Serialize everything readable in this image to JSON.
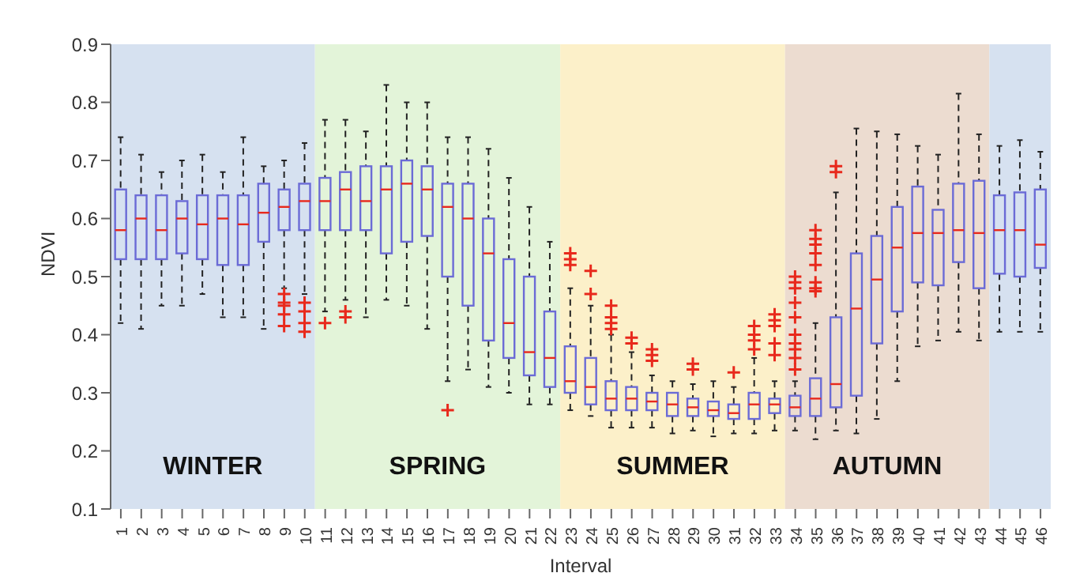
{
  "chart_data": {
    "type": "box",
    "xlabel": "Interval",
    "ylabel": "NDVI",
    "categories": [
      "1",
      "2",
      "3",
      "4",
      "5",
      "6",
      "7",
      "8",
      "9",
      "10",
      "11",
      "12",
      "13",
      "14",
      "15",
      "16",
      "17",
      "18",
      "19",
      "20",
      "21",
      "22",
      "23",
      "24",
      "25",
      "26",
      "27",
      "28",
      "29",
      "30",
      "31",
      "32",
      "33",
      "34",
      "35",
      "36",
      "37",
      "38",
      "39",
      "40",
      "41",
      "42",
      "43",
      "44",
      "45",
      "46"
    ],
    "ylim": [
      0.1,
      0.9
    ],
    "yticks": [
      0.1,
      0.2,
      0.3,
      0.4,
      0.5,
      0.6,
      0.7,
      0.8,
      0.9
    ],
    "grid": false,
    "legend": false,
    "series": [
      {
        "color": "#6b6bd6",
        "boxes": [
          {
            "low": 0.42,
            "q1": 0.53,
            "median": 0.58,
            "q3": 0.65,
            "high": 0.74
          },
          {
            "low": 0.41,
            "q1": 0.53,
            "median": 0.6,
            "q3": 0.64,
            "high": 0.71
          },
          {
            "low": 0.45,
            "q1": 0.53,
            "median": 0.58,
            "q3": 0.64,
            "high": 0.68
          },
          {
            "low": 0.45,
            "q1": 0.54,
            "median": 0.6,
            "q3": 0.63,
            "high": 0.7
          },
          {
            "low": 0.47,
            "q1": 0.53,
            "median": 0.59,
            "q3": 0.64,
            "high": 0.71
          },
          {
            "low": 0.43,
            "q1": 0.52,
            "median": 0.6,
            "q3": 0.64,
            "high": 0.68
          },
          {
            "low": 0.43,
            "q1": 0.52,
            "median": 0.59,
            "q3": 0.64,
            "high": 0.74
          },
          {
            "low": 0.41,
            "q1": 0.56,
            "median": 0.61,
            "q3": 0.66,
            "high": 0.69
          },
          {
            "low": 0.48,
            "q1": 0.58,
            "median": 0.62,
            "q3": 0.65,
            "high": 0.7,
            "outliers": [
              0.47,
              0.455,
              0.45,
              0.435,
              0.415
            ]
          },
          {
            "low": 0.47,
            "q1": 0.58,
            "median": 0.63,
            "q3": 0.66,
            "high": 0.73,
            "outliers": [
              0.455,
              0.44,
              0.42,
              0.405
            ]
          },
          {
            "low": 0.44,
            "q1": 0.58,
            "median": 0.63,
            "q3": 0.67,
            "high": 0.77,
            "outliers": [
              0.42
            ]
          },
          {
            "low": 0.46,
            "q1": 0.58,
            "median": 0.65,
            "q3": 0.68,
            "high": 0.77,
            "outliers": [
              0.44,
              0.43
            ]
          },
          {
            "low": 0.43,
            "q1": 0.58,
            "median": 0.63,
            "q3": 0.69,
            "high": 0.75
          },
          {
            "low": 0.46,
            "q1": 0.54,
            "median": 0.65,
            "q3": 0.69,
            "high": 0.83
          },
          {
            "low": 0.45,
            "q1": 0.56,
            "median": 0.66,
            "q3": 0.7,
            "high": 0.8
          },
          {
            "low": 0.41,
            "q1": 0.57,
            "median": 0.65,
            "q3": 0.69,
            "high": 0.8
          },
          {
            "low": 0.32,
            "q1": 0.5,
            "median": 0.62,
            "q3": 0.66,
            "high": 0.74,
            "outliers": [
              0.27
            ]
          },
          {
            "low": 0.34,
            "q1": 0.45,
            "median": 0.6,
            "q3": 0.66,
            "high": 0.74
          },
          {
            "low": 0.31,
            "q1": 0.39,
            "median": 0.54,
            "q3": 0.6,
            "high": 0.72
          },
          {
            "low": 0.3,
            "q1": 0.36,
            "median": 0.42,
            "q3": 0.53,
            "high": 0.67
          },
          {
            "low": 0.28,
            "q1": 0.33,
            "median": 0.37,
            "q3": 0.5,
            "high": 0.62
          },
          {
            "low": 0.28,
            "q1": 0.31,
            "median": 0.36,
            "q3": 0.44,
            "high": 0.56
          },
          {
            "low": 0.27,
            "q1": 0.3,
            "median": 0.32,
            "q3": 0.38,
            "high": 0.48,
            "outliers": [
              0.54,
              0.53,
              0.52
            ]
          },
          {
            "low": 0.26,
            "q1": 0.28,
            "median": 0.31,
            "q3": 0.36,
            "high": 0.45,
            "outliers": [
              0.51,
              0.47
            ]
          },
          {
            "low": 0.24,
            "q1": 0.27,
            "median": 0.29,
            "q3": 0.32,
            "high": 0.4,
            "outliers": [
              0.45,
              0.43,
              0.42,
              0.41
            ]
          },
          {
            "low": 0.24,
            "q1": 0.27,
            "median": 0.29,
            "q3": 0.31,
            "high": 0.37,
            "outliers": [
              0.395,
              0.385
            ]
          },
          {
            "low": 0.24,
            "q1": 0.27,
            "median": 0.285,
            "q3": 0.3,
            "high": 0.33,
            "outliers": [
              0.375,
              0.365,
              0.355
            ]
          },
          {
            "low": 0.23,
            "q1": 0.26,
            "median": 0.28,
            "q3": 0.3,
            "high": 0.32
          },
          {
            "low": 0.235,
            "q1": 0.26,
            "median": 0.275,
            "q3": 0.29,
            "high": 0.315,
            "outliers": [
              0.35,
              0.34
            ]
          },
          {
            "low": 0.225,
            "q1": 0.26,
            "median": 0.27,
            "q3": 0.285,
            "high": 0.32
          },
          {
            "low": 0.23,
            "q1": 0.255,
            "median": 0.265,
            "q3": 0.28,
            "high": 0.31,
            "outliers": [
              0.335
            ]
          },
          {
            "low": 0.23,
            "q1": 0.255,
            "median": 0.28,
            "q3": 0.3,
            "high": 0.36,
            "outliers": [
              0.415,
              0.4,
              0.39,
              0.375
            ]
          },
          {
            "low": 0.235,
            "q1": 0.265,
            "median": 0.28,
            "q3": 0.29,
            "high": 0.32,
            "outliers": [
              0.435,
              0.425,
              0.415,
              0.385,
              0.365
            ]
          },
          {
            "low": 0.235,
            "q1": 0.26,
            "median": 0.275,
            "q3": 0.295,
            "high": 0.32,
            "outliers": [
              0.5,
              0.49,
              0.48,
              0.455,
              0.43,
              0.4,
              0.385,
              0.375,
              0.36,
              0.34
            ]
          },
          {
            "low": 0.22,
            "q1": 0.26,
            "median": 0.29,
            "q3": 0.325,
            "high": 0.42,
            "outliers": [
              0.58,
              0.565,
              0.555,
              0.54,
              0.52,
              0.49,
              0.48,
              0.475
            ]
          },
          {
            "low": 0.235,
            "q1": 0.275,
            "median": 0.315,
            "q3": 0.43,
            "high": 0.645,
            "outliers": [
              0.69,
              0.68
            ]
          },
          {
            "low": 0.23,
            "q1": 0.295,
            "median": 0.445,
            "q3": 0.54,
            "high": 0.755
          },
          {
            "low": 0.255,
            "q1": 0.385,
            "median": 0.495,
            "q3": 0.57,
            "high": 0.75
          },
          {
            "low": 0.32,
            "q1": 0.44,
            "median": 0.55,
            "q3": 0.62,
            "high": 0.745
          },
          {
            "low": 0.38,
            "q1": 0.49,
            "median": 0.575,
            "q3": 0.655,
            "high": 0.725
          },
          {
            "low": 0.39,
            "q1": 0.485,
            "median": 0.575,
            "q3": 0.615,
            "high": 0.71
          },
          {
            "low": 0.405,
            "q1": 0.525,
            "median": 0.58,
            "q3": 0.66,
            "high": 0.815
          },
          {
            "low": 0.39,
            "q1": 0.48,
            "median": 0.575,
            "q3": 0.665,
            "high": 0.745
          },
          {
            "low": 0.405,
            "q1": 0.505,
            "median": 0.58,
            "q3": 0.64,
            "high": 0.725
          },
          {
            "low": 0.405,
            "q1": 0.5,
            "median": 0.58,
            "q3": 0.645,
            "high": 0.735
          },
          {
            "low": 0.405,
            "q1": 0.515,
            "median": 0.555,
            "q3": 0.65,
            "high": 0.715
          }
        ]
      }
    ],
    "bands": [
      {
        "axis": "x",
        "from": "1",
        "to": "10",
        "label": "WINTER",
        "color": "#d6e1f0"
      },
      {
        "axis": "x",
        "from": "11",
        "to": "22",
        "label": "SPRING",
        "color": "#e3f4d9"
      },
      {
        "axis": "x",
        "from": "23",
        "to": "33",
        "label": "SUMMER",
        "color": "#fcf0c9"
      },
      {
        "axis": "x",
        "from": "34",
        "to": "43",
        "label": "AUTUMN",
        "color": "#ecdcd0"
      },
      {
        "axis": "x",
        "from": "44",
        "to": "46",
        "label": null,
        "color": "#d6e1f0"
      }
    ]
  }
}
